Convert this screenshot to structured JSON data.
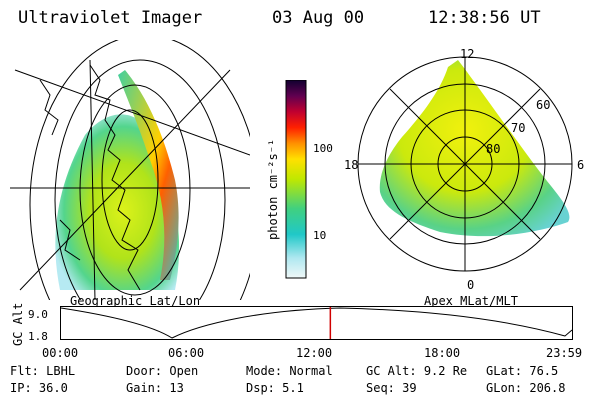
{
  "header": {
    "instrument": "Ultraviolet Imager",
    "date": "03 Aug 00",
    "time": "12:38:56 UT"
  },
  "left_map": {
    "caption": "Geographic Lat/Lon"
  },
  "right_map": {
    "caption": "Apex MLat/MLT",
    "mlt_labels": {
      "top": "12",
      "left": "18",
      "right": "6",
      "bottom": "0"
    },
    "mlat_labels": [
      "60",
      "70",
      "80"
    ]
  },
  "colorbar": {
    "unit_label": "photon cm⁻²s⁻¹",
    "ticks": [
      "100",
      "10"
    ]
  },
  "altitude_plot": {
    "ylabel": "GC Alt",
    "y_ticks": [
      "9.0",
      "1.8"
    ],
    "x_ticks": [
      "00:00",
      "06:00",
      "12:00",
      "18:00",
      "23:59"
    ],
    "current_time_marker": 12.65
  },
  "info_panel": {
    "row1": [
      {
        "label": "Flt:",
        "value": "LBHL"
      },
      {
        "label": "Door:",
        "value": "Open"
      },
      {
        "label": "Mode:",
        "value": "Normal"
      },
      {
        "label": "GC Alt:",
        "value": "9.2 Re"
      },
      {
        "label": "GLat:",
        "value": "76.5"
      }
    ],
    "row2": [
      {
        "label": "IP:",
        "value": "36.0"
      },
      {
        "label": "Gain:",
        "value": "13"
      },
      {
        "label": "Dsp:",
        "value": "5.1"
      },
      {
        "label": "Seq:",
        "value": "39"
      },
      {
        "label": "GLon:",
        "value": "206.8"
      }
    ]
  }
}
